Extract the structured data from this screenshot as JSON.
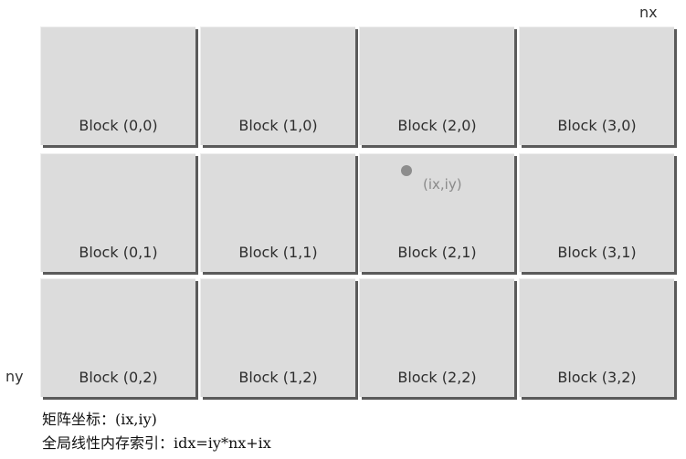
{
  "axes": {
    "x_label": "nx",
    "y_label": "ny"
  },
  "grid": {
    "cols": 4,
    "rows": 3,
    "blocks": [
      "Block (0,0)",
      "Block (1,0)",
      "Block (2,0)",
      "Block (3,0)",
      "Block (0,1)",
      "Block (1,1)",
      "Block (2,1)",
      "Block (3,1)",
      "Block (0,2)",
      "Block (1,2)",
      "Block (2,2)",
      "Block (3,2)"
    ]
  },
  "thread": {
    "label": "(ix,iy)"
  },
  "caption": {
    "line1": "矩阵坐标：(ix,iy)",
    "line2": "全局线性内存索引：idx=iy*nx+ix"
  }
}
